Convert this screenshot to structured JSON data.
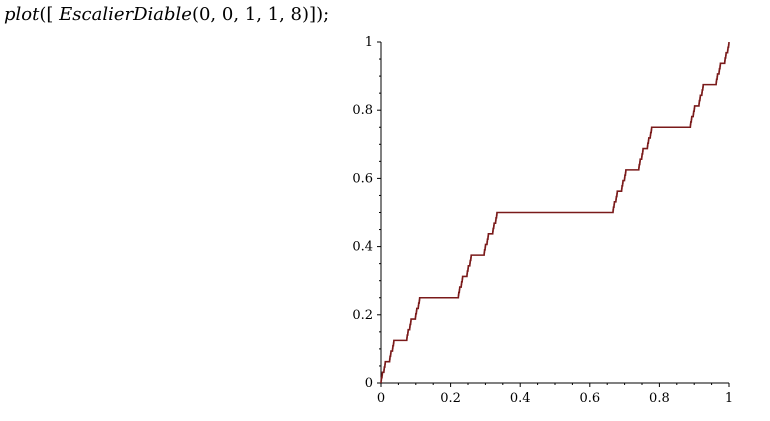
{
  "command": {
    "fn": "plot",
    "open": "([ ",
    "arg_name": "EscalierDiable",
    "args": "(0, 0, 1, 1, 8)",
    "close": "]);"
  },
  "chart_data": {
    "type": "line",
    "function": "Cantor staircase (devil's staircase), depth 8",
    "depth": 8,
    "xlim": [
      0,
      1
    ],
    "ylim": [
      0,
      1
    ],
    "x_ticks": [
      "0",
      "0.2",
      "0.4",
      "0.6",
      "0.8",
      "1"
    ],
    "y_ticks": [
      "0",
      "0.2",
      "0.4",
      "0.6",
      "0.8",
      "1"
    ],
    "x_tick_values": [
      0,
      0.2,
      0.4,
      0.6,
      0.8,
      1
    ],
    "y_tick_values": [
      0,
      0.2,
      0.4,
      0.6,
      0.8,
      1
    ],
    "grid": false,
    "legend": "none",
    "line_color": "#7a1a1a"
  }
}
